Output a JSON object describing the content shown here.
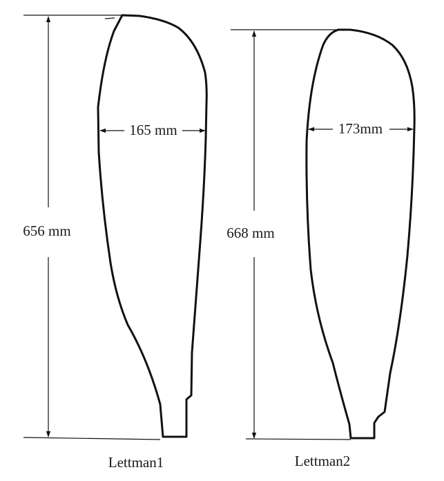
{
  "figure": {
    "paddles": [
      {
        "caption": "Lettman1",
        "length_label": "656 mm",
        "width_label": "165 mm"
      },
      {
        "caption": "Lettman2",
        "length_label": "668 mm",
        "width_label": "173mm"
      }
    ]
  }
}
